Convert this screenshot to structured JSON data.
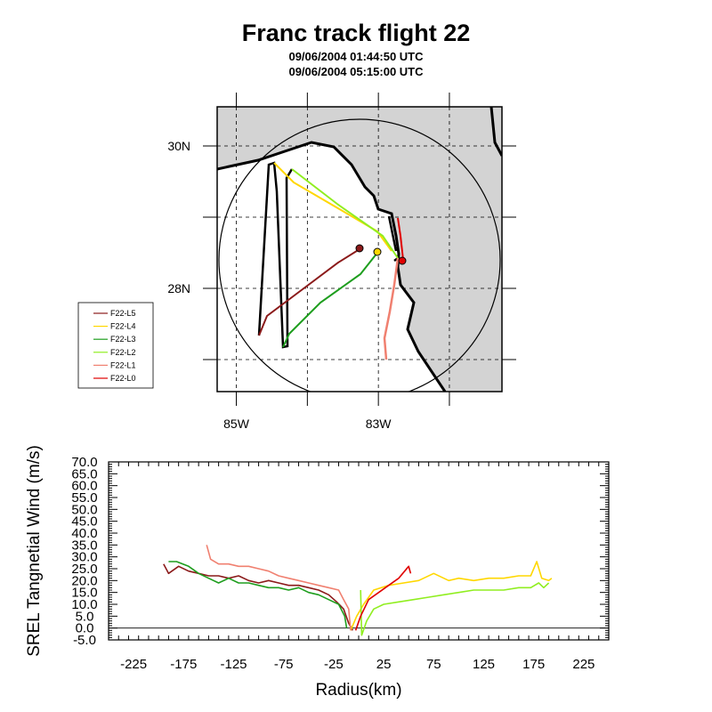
{
  "title": "Franc track flight 22",
  "subtitle1": "09/06/2004 01:44:50 UTC",
  "subtitle2": "09/06/2004 05:15:00 UTC",
  "map": {
    "lat_labels": [
      {
        "text": "30N",
        "lat": 30
      },
      {
        "text": "28N",
        "lat": 28
      }
    ],
    "lon_labels": [
      {
        "text": "85W",
        "lon": -85
      },
      {
        "text": "83W",
        "lon": -83
      }
    ],
    "extent": {
      "lon_min": -85.27,
      "lon_max": -81.26,
      "lat_min": 26.55,
      "lat_max": 30.55
    },
    "legend": [
      {
        "label": "F22-L5",
        "color": "#8b1a1a"
      },
      {
        "label": "F22-L4",
        "color": "#ffd700"
      },
      {
        "label": "F22-L3",
        "color": "#1e9e1e"
      },
      {
        "label": "F22-L2",
        "color": "#90ee20"
      },
      {
        "label": "F22-L1",
        "color": "#f08070"
      },
      {
        "label": "F22-L0",
        "color": "#e00000"
      }
    ]
  },
  "chart_data": {
    "type": "line",
    "title": "",
    "xlabel": "Radius(km)",
    "ylabel": "SREL Tangnetial Wind (m/s)",
    "xlim": [
      -250,
      250
    ],
    "ylim": [
      -5,
      70
    ],
    "xticks": [
      -225,
      -175,
      -125,
      -75,
      -25,
      25,
      75,
      125,
      175,
      225
    ],
    "yticks": [
      -5,
      0,
      5,
      10,
      15,
      20,
      25,
      30,
      35,
      40,
      45,
      50,
      55,
      60,
      65,
      70
    ],
    "ytick_labels": [
      "-5.0",
      "0.0",
      "5.0",
      "10.0",
      "15.0",
      "20.0",
      "25.0",
      "30.0",
      "35.0",
      "40.0",
      "45.0",
      "50.0",
      "55.0",
      "60.0",
      "65.0",
      "70.0"
    ],
    "series": [
      {
        "name": "F22-L5",
        "color": "#8b1a1a",
        "points": [
          [
            -195,
            27
          ],
          [
            -190,
            23
          ],
          [
            -180,
            26
          ],
          [
            -170,
            24
          ],
          [
            -160,
            23
          ],
          [
            -150,
            22
          ],
          [
            -140,
            22
          ],
          [
            -130,
            21
          ],
          [
            -120,
            22
          ],
          [
            -110,
            20
          ],
          [
            -100,
            19
          ],
          [
            -90,
            20
          ],
          [
            -80,
            19
          ],
          [
            -70,
            18
          ],
          [
            -60,
            18
          ],
          [
            -50,
            17
          ],
          [
            -40,
            16
          ],
          [
            -30,
            14
          ],
          [
            -22,
            11
          ],
          [
            -15,
            8
          ],
          [
            -10,
            2
          ],
          [
            -6,
            -1
          ]
        ]
      },
      {
        "name": "F22-L4",
        "color": "#ffd700",
        "points": [
          [
            -8,
            -1
          ],
          [
            -2,
            5
          ],
          [
            5,
            10
          ],
          [
            15,
            16
          ],
          [
            30,
            18
          ],
          [
            45,
            19
          ],
          [
            60,
            20
          ],
          [
            75,
            23
          ],
          [
            90,
            20
          ],
          [
            100,
            21
          ],
          [
            115,
            20
          ],
          [
            130,
            21
          ],
          [
            145,
            21
          ],
          [
            160,
            22
          ],
          [
            172,
            22
          ],
          [
            178,
            28
          ],
          [
            183,
            21
          ],
          [
            190,
            20
          ],
          [
            193,
            21
          ]
        ]
      },
      {
        "name": "F22-L3",
        "color": "#1e9e1e",
        "points": [
          [
            -190,
            28
          ],
          [
            -182,
            28
          ],
          [
            -170,
            26
          ],
          [
            -160,
            23
          ],
          [
            -150,
            21
          ],
          [
            -140,
            19
          ],
          [
            -130,
            21
          ],
          [
            -120,
            19
          ],
          [
            -110,
            19
          ],
          [
            -100,
            18
          ],
          [
            -90,
            17
          ],
          [
            -80,
            17
          ],
          [
            -70,
            16
          ],
          [
            -60,
            17
          ],
          [
            -50,
            15
          ],
          [
            -40,
            14
          ],
          [
            -30,
            12
          ],
          [
            -20,
            10
          ],
          [
            -14,
            5
          ],
          [
            -12,
            0
          ]
        ]
      },
      {
        "name": "F22-L2",
        "color": "#90ee20",
        "points": [
          [
            2,
            16
          ],
          [
            3,
            -3
          ],
          [
            8,
            3
          ],
          [
            15,
            8
          ],
          [
            25,
            10
          ],
          [
            40,
            11
          ],
          [
            55,
            12
          ],
          [
            70,
            13
          ],
          [
            85,
            14
          ],
          [
            100,
            15
          ],
          [
            115,
            16
          ],
          [
            130,
            16
          ],
          [
            145,
            16
          ],
          [
            160,
            17
          ],
          [
            172,
            17
          ],
          [
            180,
            19
          ],
          [
            185,
            17
          ],
          [
            190,
            19
          ]
        ]
      },
      {
        "name": "F22-L1",
        "color": "#f08070",
        "points": [
          [
            -152,
            35
          ],
          [
            -148,
            29
          ],
          [
            -140,
            27
          ],
          [
            -130,
            27
          ],
          [
            -120,
            26
          ],
          [
            -110,
            26
          ],
          [
            -100,
            25
          ],
          [
            -90,
            24
          ],
          [
            -80,
            22
          ],
          [
            -70,
            21
          ],
          [
            -60,
            20
          ],
          [
            -50,
            19
          ],
          [
            -40,
            18
          ],
          [
            -30,
            17
          ],
          [
            -20,
            16
          ],
          [
            -15,
            12
          ],
          [
            -10,
            8
          ],
          [
            -8,
            -1
          ]
        ]
      },
      {
        "name": "F22-L0",
        "color": "#e00000",
        "points": [
          [
            -3,
            -1
          ],
          [
            2,
            5
          ],
          [
            10,
            12
          ],
          [
            20,
            15
          ],
          [
            30,
            18
          ],
          [
            40,
            21
          ],
          [
            50,
            26
          ],
          [
            52,
            23
          ]
        ]
      }
    ]
  }
}
